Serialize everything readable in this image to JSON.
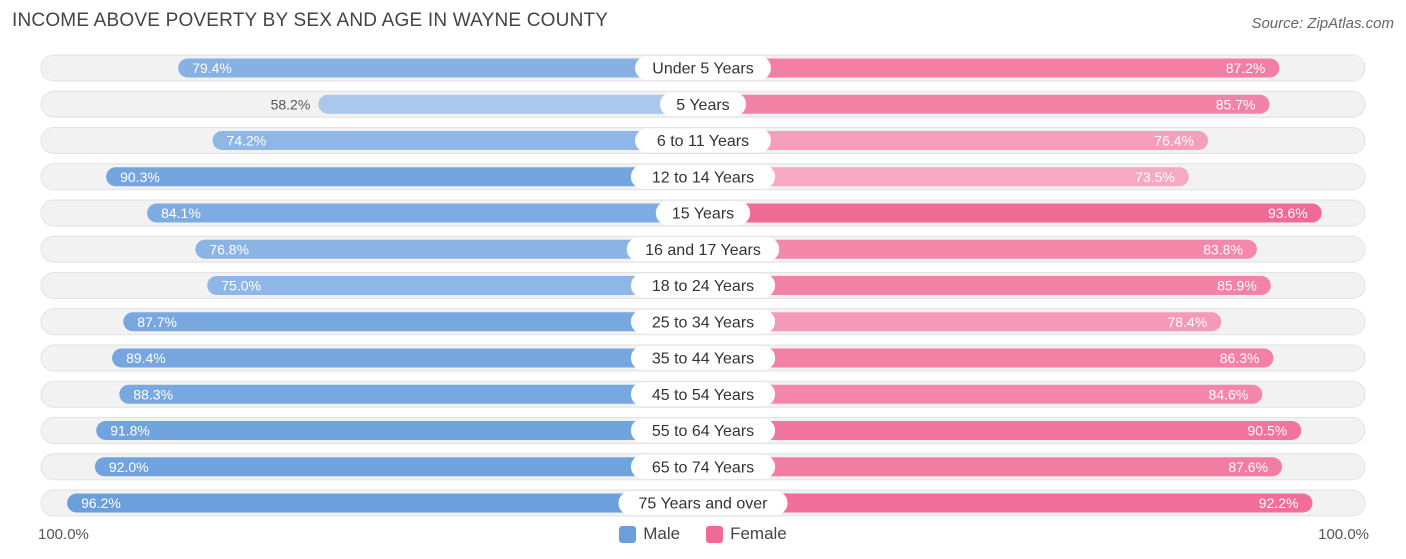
{
  "title": "INCOME ABOVE POVERTY BY SEX AND AGE IN WAYNE COUNTY",
  "source": "Source: ZipAtlas.com",
  "colors": {
    "male": "#6a9fdc",
    "male_light": "#aac8ee",
    "female": "#f06a96",
    "female_light": "#f7a8c2"
  },
  "chart_data": {
    "type": "bar",
    "orientation": "horizontal-diverging",
    "title": "INCOME ABOVE POVERTY BY SEX AND AGE IN WAYNE COUNTY",
    "categories": [
      "Under 5 Years",
      "5 Years",
      "6 to 11 Years",
      "12 to 14 Years",
      "15 Years",
      "16 and 17 Years",
      "18 to 24 Years",
      "25 to 34 Years",
      "35 to 44 Years",
      "45 to 54 Years",
      "55 to 64 Years",
      "65 to 74 Years",
      "75 Years and over"
    ],
    "series": [
      {
        "name": "Male",
        "values": [
          79.4,
          58.2,
          74.2,
          90.3,
          84.1,
          76.8,
          75.0,
          87.7,
          89.4,
          88.3,
          91.8,
          92.0,
          96.2
        ],
        "labels": [
          "79.4%",
          "58.2%",
          "74.2%",
          "90.3%",
          "84.1%",
          "76.8%",
          "75.0%",
          "87.7%",
          "89.4%",
          "88.3%",
          "91.8%",
          "92.0%",
          "96.2%"
        ]
      },
      {
        "name": "Female",
        "values": [
          87.2,
          85.7,
          76.4,
          73.5,
          93.6,
          83.8,
          85.9,
          78.4,
          86.3,
          84.6,
          90.5,
          87.6,
          92.2
        ],
        "labels": [
          "87.2%",
          "85.7%",
          "76.4%",
          "73.5%",
          "93.6%",
          "83.8%",
          "85.9%",
          "78.4%",
          "86.3%",
          "84.6%",
          "90.5%",
          "87.6%",
          "92.2%"
        ]
      }
    ],
    "xlim": [
      0,
      100
    ],
    "axis_left_label": "100.0%",
    "axis_right_label": "100.0%",
    "legend": [
      "Male",
      "Female"
    ],
    "legend_position": "bottom-center"
  }
}
